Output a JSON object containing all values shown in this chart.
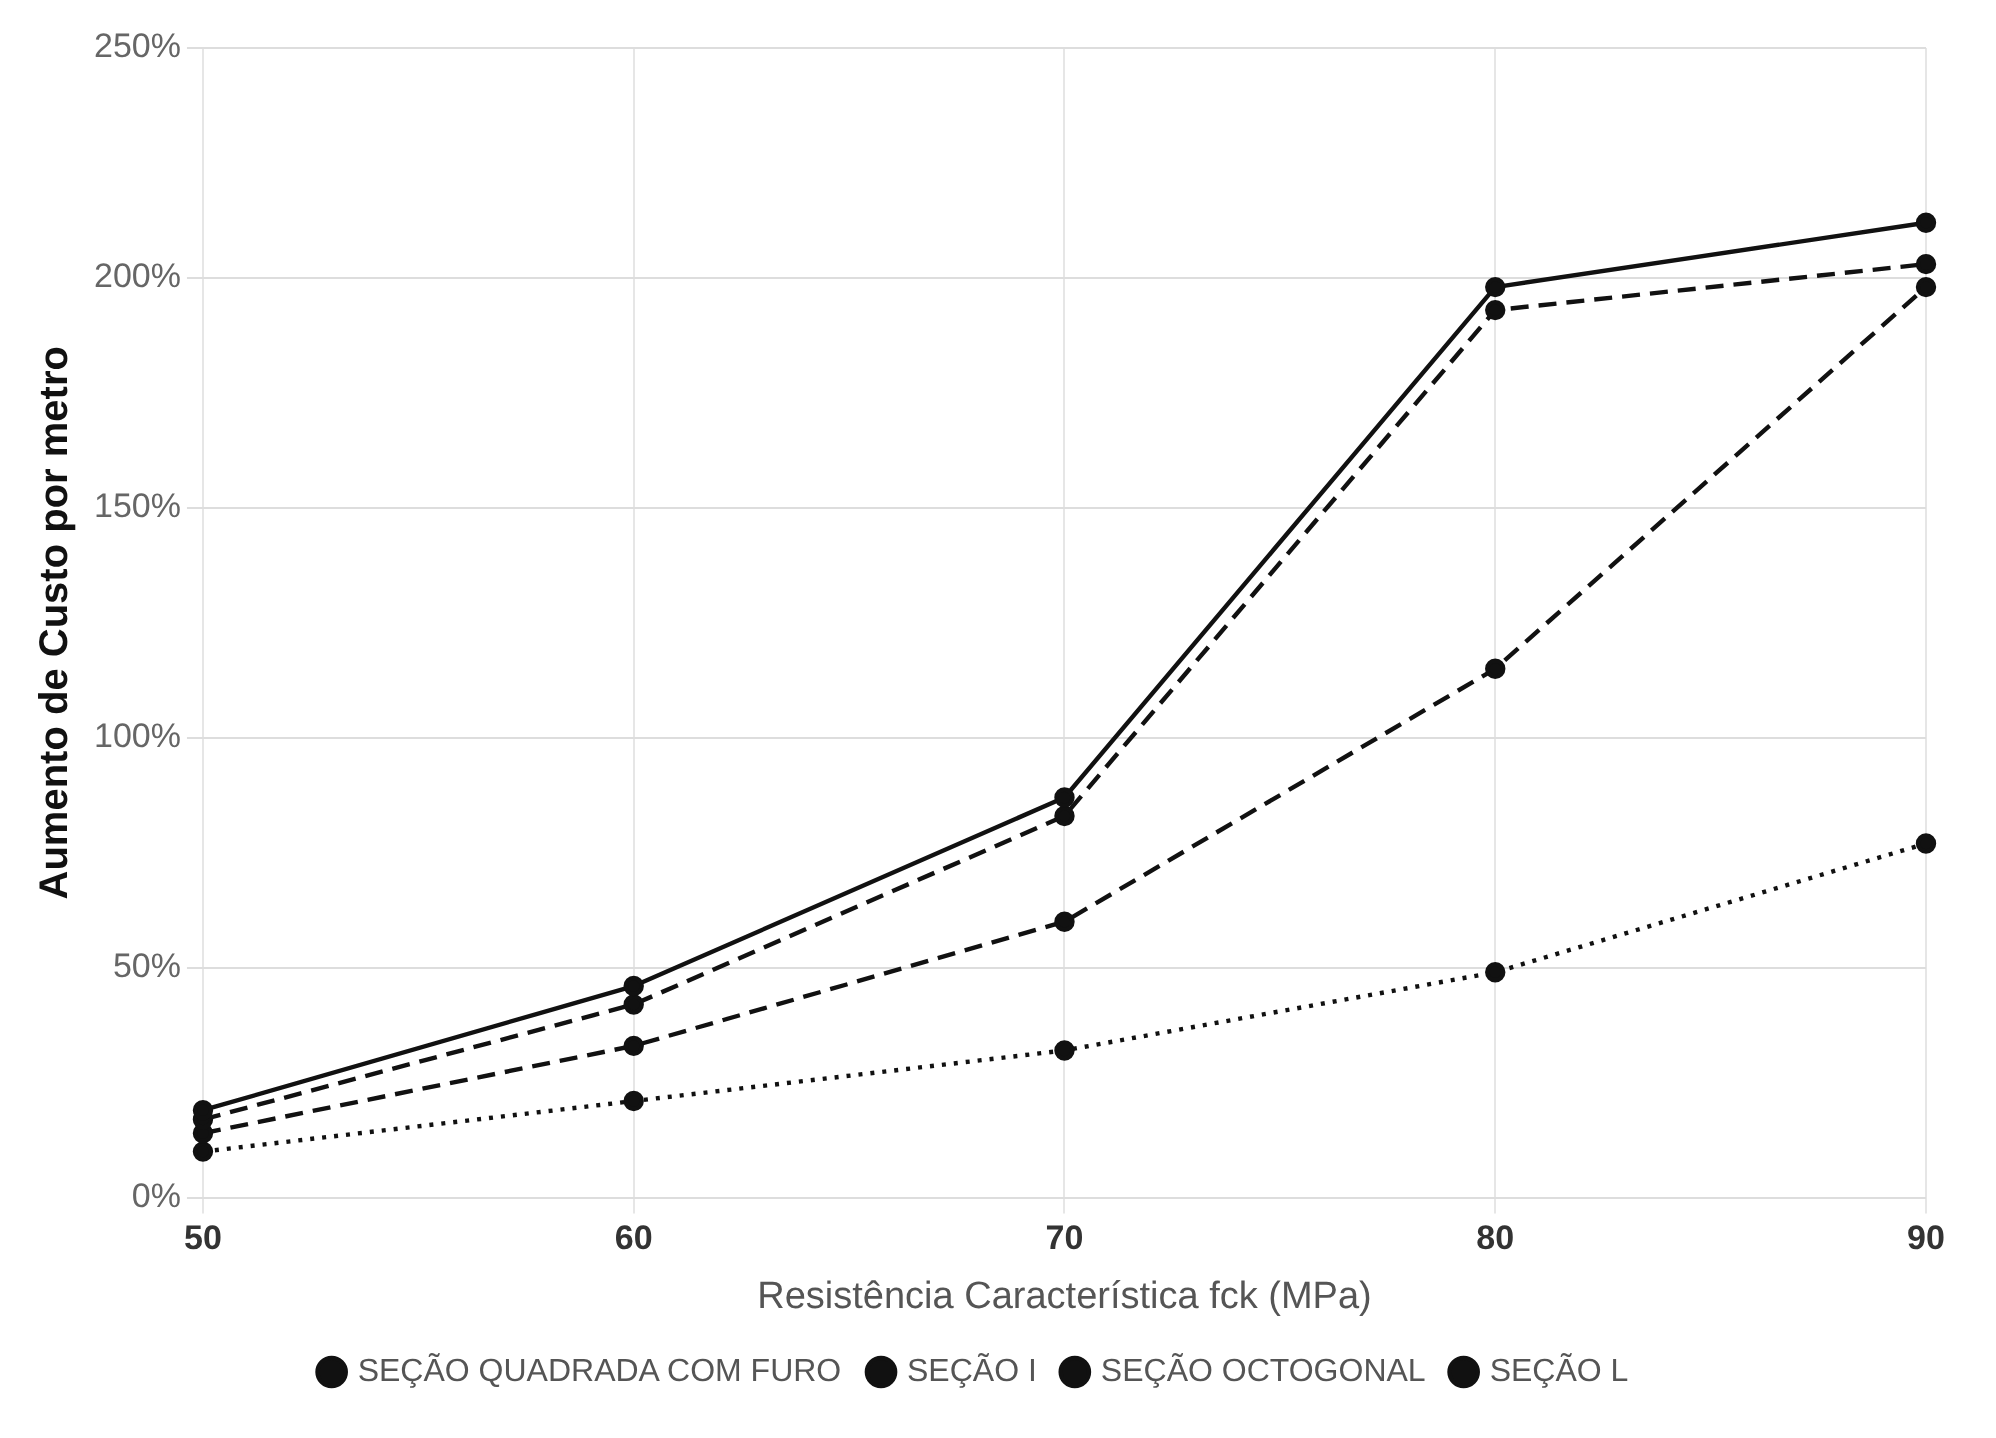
{
  "chart_data": {
    "type": "line",
    "xlabel": "Resistência Característica fck (MPa)",
    "ylabel": "Aumento de Custo por metro",
    "categories": [
      "50",
      "60",
      "70",
      "80",
      "90"
    ],
    "series": [
      {
        "name": "SEÇÃO L",
        "color": "#111111",
        "line_style": "dotted",
        "values": [
          10,
          21,
          32,
          49,
          77
        ]
      },
      {
        "name": "SEÇÃO OCTOGONAL",
        "color": "#111111",
        "line_style": "dashed",
        "values": [
          14,
          33,
          60,
          115,
          198
        ]
      },
      {
        "name": "SEÇÃO I",
        "color": "#111111",
        "line_style": "dashed",
        "values": [
          17,
          42,
          83,
          193,
          203
        ]
      },
      {
        "name": "SEÇÃO QUADRADA COM FURO",
        "color": "#111111",
        "line_style": "solid",
        "values": [
          19,
          46,
          87,
          198,
          212
        ]
      }
    ],
    "ylim": [
      0,
      250
    ],
    "yticks": [
      {
        "value": 0,
        "label": "0%"
      },
      {
        "value": 50,
        "label": "50%"
      },
      {
        "value": 100,
        "label": "100%"
      },
      {
        "value": 150,
        "label": "150%"
      },
      {
        "value": 200,
        "label": "200%"
      },
      {
        "value": 250,
        "label": "250%"
      }
    ],
    "grid": true,
    "legend": "bottom",
    "marker": "circle"
  }
}
